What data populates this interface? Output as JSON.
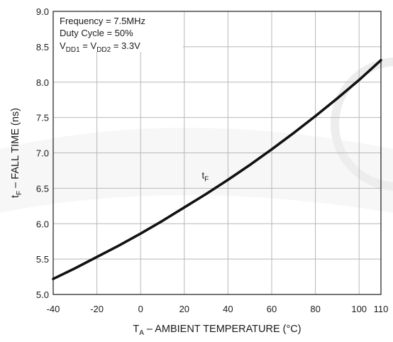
{
  "chart_data": {
    "type": "line",
    "title": "",
    "xlabel": {
      "main": "T",
      "sub": "A",
      "rest": " – AMBIENT TEMPERATURE (°C)"
    },
    "ylabel": {
      "main": "t",
      "sub": "F",
      "rest": " – FALL TIME (ns)"
    },
    "xlim": [
      -40,
      110
    ],
    "ylim": [
      5.0,
      9.0
    ],
    "x_ticks": [
      -40,
      -20,
      0,
      20,
      40,
      60,
      80,
      100,
      110
    ],
    "x_tick_labels": [
      "-40",
      "-20",
      "0",
      "20",
      "40",
      "60",
      "80",
      "100",
      "110"
    ],
    "y_ticks": [
      5.0,
      5.5,
      6.0,
      6.5,
      7.0,
      7.5,
      8.0,
      8.5,
      9.0
    ],
    "y_tick_labels": [
      "5.0",
      "5.5",
      "6.0",
      "6.5",
      "7.0",
      "7.5",
      "8.0",
      "8.5",
      "9.0"
    ],
    "grid": true,
    "annotations": {
      "line1": "Frequency = 7.5MHz",
      "line2": "Duty Cycle = 50%",
      "line3_parts": [
        "V",
        "DD1",
        " = V",
        "DD2",
        " = 3.3V"
      ]
    },
    "series": [
      {
        "label_main": "t",
        "label_sub": "F",
        "color": "#111111",
        "x": [
          -40,
          -30,
          -20,
          -10,
          0,
          10,
          20,
          30,
          40,
          50,
          60,
          70,
          80,
          90,
          100,
          110
        ],
        "y": [
          5.22,
          5.37,
          5.53,
          5.69,
          5.86,
          6.04,
          6.23,
          6.42,
          6.62,
          6.83,
          7.05,
          7.28,
          7.52,
          7.77,
          8.03,
          8.31
        ]
      }
    ]
  }
}
